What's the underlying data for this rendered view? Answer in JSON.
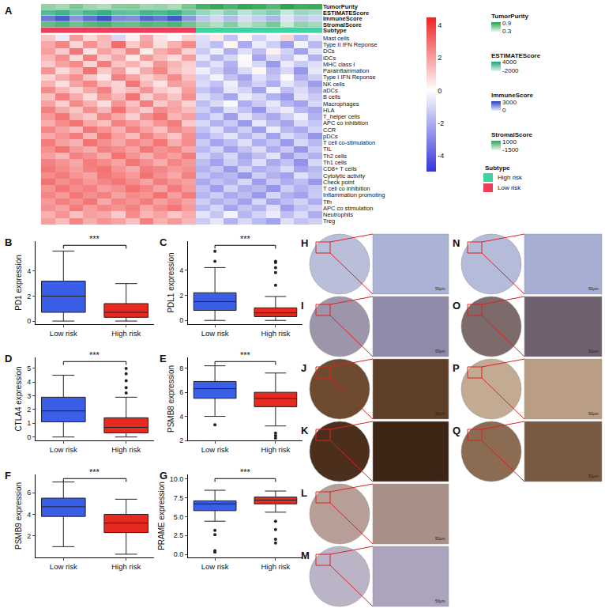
{
  "chart_data": [
    {
      "type": "heatmap",
      "label": "A",
      "rows": [
        "Mast cells",
        "Type II IFN Reponse",
        "DCs",
        "iDCs",
        "MHC class I",
        "Parainflammation",
        "Type I IFN Reponse",
        "NK cells",
        "aDCs",
        "B cells",
        "Macrophages",
        "HLA",
        "T_helper cells",
        "APC co inhibition",
        "CCR",
        "pDCs",
        "T cell co-stimulation",
        "TIL",
        "Th2 cells",
        "Th1 cells",
        "CD8+ T cells",
        "Cytolytic activity",
        "Check point",
        "T cell co inhibition",
        "Inflammation promoting",
        "Tfh",
        "APC co stimulation",
        "Neutrophils",
        "Treg"
      ],
      "values": [
        [
          1.2,
          -0.5,
          2.1,
          0.8,
          1.5,
          -1.0,
          0.3,
          1.8,
          0.6,
          -0.2,
          1.0,
          -0.8,
          0.5,
          -1.5,
          0.2,
          -1.1,
          -0.4,
          0.9,
          -1.8,
          -0.6
        ],
        [
          1.8,
          2.5,
          0.9,
          2.2,
          1.4,
          3.0,
          1.1,
          2.0,
          0.7,
          1.6,
          2.4,
          -0.9,
          -1.6,
          0.2,
          -2.1,
          -0.5,
          -1.2,
          -2.4,
          -0.3,
          -1.7
        ],
        [
          2.0,
          1.1,
          2.8,
          0.6,
          1.9,
          1.3,
          2.5,
          0.4,
          1.7,
          2.2,
          0.9,
          -1.3,
          -0.4,
          -2.0,
          -0.8,
          -1.6,
          0.3,
          -1.1,
          -2.3,
          -0.7
        ],
        [
          1.5,
          2.3,
          0.8,
          2.6,
          1.0,
          1.8,
          0.5,
          2.1,
          1.4,
          0.7,
          2.0,
          -0.6,
          -1.8,
          -1.0,
          0.1,
          -2.2,
          -0.9,
          -1.4,
          -0.3,
          -1.9
        ],
        [
          1.1,
          1.9,
          2.4,
          0.9,
          2.7,
          1.2,
          1.6,
          0.8,
          2.2,
          1.5,
          1.0,
          -1.5,
          -0.7,
          -1.9,
          -0.2,
          -1.0,
          -2.5,
          -0.5,
          -1.3,
          -0.8
        ],
        [
          2.2,
          0.8,
          1.5,
          2.9,
          1.1,
          2.0,
          0.6,
          1.8,
          2.5,
          1.3,
          0.9,
          -0.4,
          -1.2,
          -2.1,
          -0.9,
          0.2,
          -1.7,
          -1.0,
          -2.6,
          -0.6
        ],
        [
          0.9,
          1.7,
          2.3,
          1.2,
          0.5,
          2.6,
          1.9,
          1.0,
          1.5,
          2.4,
          1.3,
          -1.1,
          -0.3,
          -1.5,
          -2.2,
          -0.8,
          -1.4,
          0.1,
          -1.9,
          -1.2
        ],
        [
          1.6,
          0.7,
          1.9,
          2.5,
          1.3,
          0.9,
          2.8,
          1.4,
          0.6,
          2.0,
          1.7,
          -0.9,
          -1.5,
          -0.4,
          -1.8,
          -1.1,
          -2.0,
          -0.6,
          -1.3,
          -2.4
        ],
        [
          2.4,
          1.5,
          0.9,
          1.8,
          2.6,
          1.0,
          1.4,
          2.2,
          1.1,
          0.8,
          2.0,
          -1.4,
          -2.0,
          -0.6,
          -1.1,
          -2.3,
          -0.3,
          -1.6,
          -0.9,
          -1.8
        ],
        [
          1.3,
          2.6,
          1.7,
          0.8,
          2.1,
          1.5,
          2.9,
          1.0,
          1.9,
          1.2,
          2.3,
          -0.8,
          -1.4,
          -2.2,
          -0.5,
          -1.0,
          -1.9,
          -2.5,
          -0.7,
          -1.3
        ],
        [
          1.9,
          1.0,
          2.4,
          1.6,
          0.7,
          2.2,
          1.3,
          2.7,
          1.1,
          1.8,
          0.9,
          -1.6,
          -0.9,
          -0.2,
          -2.0,
          -1.3,
          -0.6,
          -1.8,
          -2.3,
          -1.0
        ],
        [
          2.6,
          1.8,
          1.2,
          2.3,
          1.5,
          2.9,
          1.7,
          1.1,
          2.4,
          1.9,
          1.4,
          -1.2,
          -2.1,
          -0.8,
          -1.5,
          -2.6,
          -1.0,
          -0.5,
          -1.7,
          -2.2
        ],
        [
          2.1,
          2.8,
          1.6,
          1.2,
          2.5,
          1.8,
          1.0,
          2.3,
          2.9,
          1.5,
          2.0,
          -1.8,
          -1.0,
          -2.4,
          -0.7,
          -1.5,
          -2.1,
          -1.2,
          -0.4,
          -1.9
        ],
        [
          1.7,
          2.4,
          2.9,
          1.8,
          1.3,
          2.6,
          2.1,
          1.5,
          2.2,
          2.7,
          1.1,
          -1.0,
          -1.9,
          -1.3,
          -2.5,
          -0.6,
          -1.6,
          -2.2,
          -0.9,
          -1.4
        ],
        [
          2.5,
          1.9,
          1.4,
          2.8,
          2.2,
          1.6,
          2.6,
          1.9,
          1.3,
          2.4,
          2.0,
          -1.5,
          -0.8,
          -2.0,
          -1.2,
          -2.4,
          -0.5,
          -1.7,
          -2.1,
          -1.1
        ],
        [
          1.8,
          2.2,
          2.7,
          1.5,
          2.9,
          2.0,
          1.4,
          2.6,
          1.9,
          1.2,
          2.3,
          -2.0,
          -1.3,
          -0.7,
          -1.8,
          -1.1,
          -2.3,
          -0.9,
          -1.5,
          -2.6
        ],
        [
          2.7,
          2.0,
          1.6,
          2.9,
          2.3,
          1.8,
          2.5,
          2.1,
          2.8,
          1.7,
          2.4,
          -1.3,
          -2.2,
          -1.6,
          -0.8,
          -2.0,
          -1.4,
          -2.5,
          -1.0,
          -1.7
        ],
        [
          2.3,
          2.9,
          2.1,
          1.7,
          2.6,
          2.4,
          1.9,
          2.8,
          2.2,
          2.5,
          1.8,
          -1.7,
          -1.1,
          -2.3,
          -1.5,
          -0.9,
          -2.0,
          -1.3,
          -2.6,
          -1.2
        ],
        [
          2.0,
          1.5,
          2.6,
          2.3,
          1.7,
          2.9,
          2.2,
          1.6,
          2.4,
          2.0,
          2.7,
          -1.1,
          -1.8,
          -1.0,
          -2.2,
          -1.6,
          -0.7,
          -2.4,
          -1.4,
          -1.9
        ],
        [
          2.6,
          2.2,
          1.8,
          2.7,
          2.4,
          1.9,
          2.8,
          2.3,
          1.7,
          2.5,
          2.1,
          -1.6,
          -2.3,
          -1.2,
          -1.9,
          -0.8,
          -2.1,
          -1.5,
          -2.7,
          -1.0
        ],
        [
          2.8,
          2.4,
          2.0,
          2.6,
          2.9,
          2.2,
          1.8,
          2.7,
          2.5,
          2.1,
          2.3,
          -1.9,
          -1.4,
          -2.5,
          -1.1,
          -2.0,
          -1.6,
          -0.9,
          -2.2,
          -1.7
        ],
        [
          2.4,
          2.7,
          2.2,
          1.9,
          2.8,
          2.5,
          2.1,
          2.9,
          2.3,
          1.8,
          2.6,
          -1.4,
          -2.0,
          -1.7,
          -2.6,
          -1.2,
          -1.9,
          -2.3,
          -0.8,
          -1.5
        ],
        [
          2.9,
          2.3,
          2.6,
          2.1,
          2.5,
          2.8,
          2.4,
          1.9,
          2.7,
          2.2,
          2.0,
          -2.1,
          -1.5,
          -1.9,
          -1.0,
          -2.4,
          -1.3,
          -2.0,
          -1.6,
          -2.5
        ],
        [
          2.2,
          2.8,
          2.4,
          2.6,
          2.0,
          2.3,
          2.9,
          2.5,
          1.9,
          2.7,
          2.1,
          -1.5,
          -2.4,
          -1.1,
          -2.0,
          -1.7,
          -2.6,
          -1.2,
          -1.9,
          -1.4
        ],
        [
          2.5,
          2.1,
          2.8,
          2.3,
          2.6,
          1.9,
          2.4,
          2.2,
          2.9,
          2.0,
          2.7,
          -1.8,
          -1.2,
          -2.1,
          -1.6,
          -2.5,
          -1.0,
          -1.9,
          -2.3,
          -1.3
        ],
        [
          2.1,
          2.6,
          2.3,
          2.8,
          1.8,
          2.5,
          2.2,
          2.7,
          2.0,
          2.4,
          1.9,
          -1.2,
          -1.9,
          -1.5,
          -2.3,
          -1.0,
          -2.2,
          -1.6,
          -1.1,
          -2.0
        ],
        [
          2.3,
          1.9,
          2.7,
          2.0,
          2.5,
          2.2,
          2.6,
          1.8,
          2.4,
          2.8,
          2.1,
          -1.7,
          -1.0,
          -2.2,
          -1.4,
          -1.9,
          -0.8,
          -2.4,
          -1.5,
          -1.1
        ],
        [
          1.6,
          2.2,
          1.3,
          2.0,
          1.8,
          1.1,
          2.4,
          1.5,
          1.9,
          1.2,
          1.7,
          -0.7,
          -1.4,
          -0.3,
          -1.8,
          -1.1,
          -0.5,
          -1.6,
          -0.9,
          -2.0
        ],
        [
          2.0,
          1.4,
          2.5,
          1.7,
          2.2,
          1.9,
          1.3,
          2.6,
          1.6,
          2.1,
          1.5,
          -1.3,
          -0.6,
          -1.9,
          -1.0,
          -1.7,
          -2.3,
          -0.8,
          -1.5,
          -1.2
        ]
      ],
      "zlim": [
        -5,
        4.5
      ],
      "zticks": [
        -4,
        -2,
        0,
        2,
        4
      ],
      "colors": [
        "#3535d9",
        "#ffffff",
        "#ec2525"
      ],
      "annotation_tracks": [
        {
          "name": "TumorPurity",
          "values": [
            0.55,
            0.48,
            0.62,
            0.51,
            0.45,
            0.58,
            0.6,
            0.5,
            0.53,
            0.47,
            0.64,
            0.82,
            0.88,
            0.79,
            0.9,
            0.85,
            0.77,
            0.92,
            0.84,
            0.87
          ],
          "zlim": [
            0.25,
            0.95
          ],
          "zticks": [
            0.3,
            0.9
          ],
          "colors": [
            "#e8f6e8",
            "#22a24a"
          ]
        },
        {
          "name": "ESTIMATEScore",
          "values": [
            2400,
            3100,
            1800,
            2700,
            3400,
            2100,
            1950,
            2900,
            2600,
            3200,
            1700,
            300,
            -600,
            700,
            -900,
            100,
            900,
            -1200,
            200,
            -300
          ],
          "zlim": [
            -2300,
            4300
          ],
          "zticks": [
            -2000,
            4000
          ],
          "colors": [
            "#e6f5ef",
            "#17a673"
          ]
        },
        {
          "name": "ImmuneScore",
          "values": [
            2100,
            2700,
            1600,
            2300,
            2900,
            1800,
            1700,
            2500,
            2200,
            2800,
            1500,
            600,
            200,
            800,
            100,
            450,
            900,
            0,
            500,
            300
          ],
          "zlim": [
            -200,
            3300
          ],
          "zticks": [
            0,
            3000
          ],
          "colors": [
            "#e8ecfa",
            "#2b3fbf"
          ]
        },
        {
          "name": "StromalScore",
          "values": [
            400,
            700,
            200,
            600,
            800,
            350,
            250,
            650,
            500,
            750,
            150,
            -500,
            -900,
            -200,
            -1100,
            -600,
            0,
            -1300,
            -400,
            -700
          ],
          "zlim": [
            -1800,
            1300
          ],
          "zticks": [
            -1500,
            1000
          ],
          "colors": [
            "#eaf7ec",
            "#2ca55a"
          ]
        },
        {
          "name": "Subtype",
          "values": [
            "Low risk",
            "Low risk",
            "Low risk",
            "Low risk",
            "Low risk",
            "Low risk",
            "Low risk",
            "Low risk",
            "Low risk",
            "Low risk",
            "Low risk",
            "High risk",
            "High risk",
            "High risk",
            "High risk",
            "High risk",
            "High risk",
            "High risk",
            "High risk",
            "High risk"
          ],
          "levels": [
            {
              "name": "High risk",
              "color": "#3dd3a3"
            },
            {
              "name": "Low risk",
              "color": "#ee3c5b"
            }
          ]
        }
      ]
    },
    {
      "type": "box",
      "label": "B",
      "ylabel": "PD1 expression",
      "categories": [
        "Low risk",
        "High risk"
      ],
      "ylim": [
        -0.25,
        6.4
      ],
      "yticks": [
        0,
        2,
        4
      ],
      "significance": "***",
      "series": [
        {
          "name": "Low risk",
          "color": "#3b5ee6",
          "lowerfence": 0,
          "q1": 0.7,
          "median": 2.0,
          "q3": 3.2,
          "upperfence": 5.6,
          "outliers": []
        },
        {
          "name": "High risk",
          "color": "#e8291f",
          "lowerfence": 0,
          "q1": 0.3,
          "median": 0.7,
          "q3": 1.4,
          "upperfence": 3.0,
          "outliers": []
        }
      ]
    },
    {
      "type": "box",
      "label": "C",
      "ylabel": "PDL1 expression",
      "categories": [
        "Low risk",
        "High risk"
      ],
      "ylim": [
        -0.3,
        6.3
      ],
      "yticks": [
        0,
        2,
        4
      ],
      "significance": "***",
      "series": [
        {
          "name": "Low risk",
          "color": "#3b5ee6",
          "lowerfence": 0,
          "q1": 0.8,
          "median": 1.5,
          "q3": 2.2,
          "upperfence": 4.2,
          "outliers": [
            4.7,
            5.5
          ]
        },
        {
          "name": "High risk",
          "color": "#e8291f",
          "lowerfence": 0,
          "q1": 0.3,
          "median": 0.6,
          "q3": 1.0,
          "upperfence": 1.9,
          "outliers": [
            2.8,
            3.8,
            4.2,
            4.6,
            4.7
          ]
        }
      ]
    },
    {
      "type": "box",
      "label": "D",
      "ylabel": "CTLA4 expression",
      "categories": [
        "Low risk",
        "High risk"
      ],
      "ylim": [
        -0.25,
        5.8
      ],
      "yticks": [
        0,
        1,
        2,
        3,
        4,
        5
      ],
      "significance": "***",
      "series": [
        {
          "name": "Low risk",
          "color": "#3b5ee6",
          "lowerfence": 0,
          "q1": 1.1,
          "median": 1.9,
          "q3": 2.9,
          "upperfence": 4.5,
          "outliers": []
        },
        {
          "name": "High risk",
          "color": "#e8291f",
          "lowerfence": 0,
          "q1": 0.3,
          "median": 0.7,
          "q3": 1.4,
          "upperfence": 2.9,
          "outliers": [
            3.2,
            3.6,
            4.1,
            4.6,
            5.0
          ]
        }
      ]
    },
    {
      "type": "box",
      "label": "E",
      "ylabel": "PSMB8 expression",
      "categories": [
        "Low risk",
        "High risk"
      ],
      "ylim": [
        2.0,
        8.9
      ],
      "yticks": [
        2,
        4,
        6,
        8
      ],
      "significance": "***",
      "series": [
        {
          "name": "Low risk",
          "color": "#3b5ee6",
          "lowerfence": 4.0,
          "q1": 5.5,
          "median": 6.3,
          "q3": 6.9,
          "upperfence": 8.2,
          "outliers": [
            3.3
          ]
        },
        {
          "name": "High risk",
          "color": "#e8291f",
          "lowerfence": 3.2,
          "q1": 4.8,
          "median": 5.5,
          "q3": 6.0,
          "upperfence": 7.6,
          "outliers": [
            2.6,
            2.4,
            2.2
          ]
        }
      ]
    },
    {
      "type": "box",
      "label": "F",
      "ylabel": "PSMB9 expression",
      "categories": [
        "Low risk",
        "High risk"
      ],
      "ylim": [
        0,
        7.7
      ],
      "yticks": [
        2,
        4,
        6
      ],
      "significance": "***",
      "series": [
        {
          "name": "Low risk",
          "color": "#3b5ee6",
          "lowerfence": 1.0,
          "q1": 3.8,
          "median": 4.7,
          "q3": 5.5,
          "upperfence": 7.0,
          "outliers": []
        },
        {
          "name": "High risk",
          "color": "#e8291f",
          "lowerfence": 0.3,
          "q1": 2.3,
          "median": 3.2,
          "q3": 4.0,
          "upperfence": 5.4,
          "outliers": []
        }
      ]
    },
    {
      "type": "box",
      "label": "G",
      "ylabel": "PRAME expression",
      "categories": [
        "Low risk",
        "High risk"
      ],
      "ylim": [
        -0.4,
        10.6
      ],
      "yticks": [
        {
          "value": 0,
          "label": "0.0"
        },
        {
          "value": 2.5,
          "label": "2.5"
        },
        {
          "value": 5,
          "label": "5.0"
        },
        {
          "value": 7.5,
          "label": "7.5"
        },
        {
          "value": 10,
          "label": "10.0"
        }
      ],
      "significance": "***",
      "series": [
        {
          "name": "Low risk",
          "color": "#3b5ee6",
          "lowerfence": 4.4,
          "q1": 5.8,
          "median": 6.7,
          "q3": 7.1,
          "upperfence": 8.5,
          "outliers": [
            3.2,
            2.6,
            0.5,
            0.3
          ]
        },
        {
          "name": "High risk",
          "color": "#e8291f",
          "lowerfence": 5.6,
          "q1": 6.7,
          "median": 7.2,
          "q3": 7.6,
          "upperfence": 8.4,
          "outliers": [
            4.4,
            3.3,
            2.0,
            1.5
          ]
        }
      ]
    }
  ],
  "ihc": {
    "panels": [
      "H",
      "I",
      "J",
      "K",
      "L",
      "M",
      "N",
      "O",
      "P",
      "Q"
    ],
    "scale_bar": "50μm"
  }
}
